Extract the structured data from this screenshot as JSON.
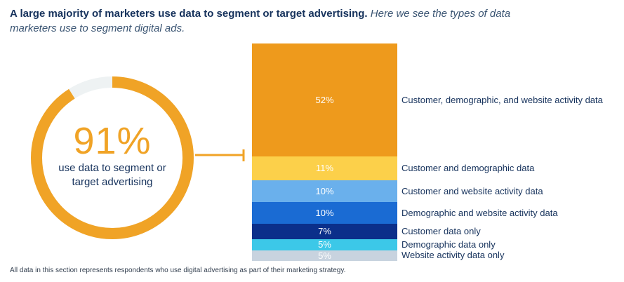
{
  "heading": {
    "bold": "A large majority of marketers use data to segment or target advertising.",
    "italic": "Here we see the types of data marketers use to segment digital ads."
  },
  "donut": {
    "value": "91%",
    "fraction": 0.91,
    "label": "use data to segment or target advertising",
    "color": "#f0a326",
    "track_color": "#eef2f3"
  },
  "chart_data": {
    "type": "bar",
    "stacked": true,
    "categories": [
      "Customer, demographic, and website activity data",
      "Customer and demographic data",
      "Customer and website activity data",
      "Demographic and website activity data",
      "Customer data only",
      "Demographic data only",
      "Website activity data only"
    ],
    "values": [
      52,
      11,
      10,
      10,
      7,
      5,
      5
    ],
    "labels": [
      "52%",
      "11%",
      "10%",
      "10%",
      "7%",
      "5%",
      "5%"
    ],
    "colors": [
      "#ee9a1c",
      "#fcd04a",
      "#6ab0ec",
      "#1a6bd3",
      "#0b2f8a",
      "#3cc8e8",
      "#c8d3df"
    ]
  },
  "footnote": "All data in this section represents respondents who use digital advertising as part of their marketing strategy."
}
